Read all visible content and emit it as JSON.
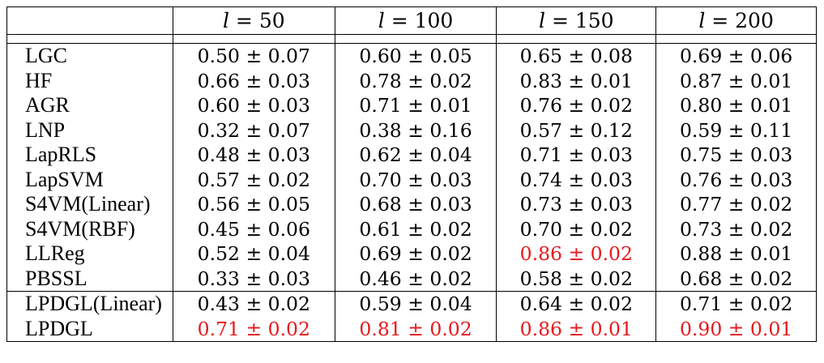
{
  "colors": {
    "highlight": "#e8191c",
    "text": "#000000"
  },
  "header": {
    "corner": "",
    "columns": [
      "l = 50",
      "l = 100",
      "l = 150",
      "l = 200"
    ]
  },
  "rows": [
    {
      "method": "LGC",
      "values": [
        "0.50 ± 0.07",
        "0.60 ± 0.05",
        "0.65 ± 0.08",
        "0.69 ± 0.06"
      ],
      "highlight": [
        false,
        false,
        false,
        false
      ]
    },
    {
      "method": "HF",
      "values": [
        "0.66 ± 0.03",
        "0.78 ± 0.02",
        "0.83 ± 0.01",
        "0.87 ± 0.01"
      ],
      "highlight": [
        false,
        false,
        false,
        false
      ]
    },
    {
      "method": "AGR",
      "values": [
        "0.60 ± 0.03",
        "0.71 ± 0.01",
        "0.76 ± 0.02",
        "0.80 ± 0.01"
      ],
      "highlight": [
        false,
        false,
        false,
        false
      ]
    },
    {
      "method": "LNP",
      "values": [
        "0.32 ± 0.07",
        "0.38 ± 0.16",
        "0.57 ± 0.12",
        "0.59 ± 0.11"
      ],
      "highlight": [
        false,
        false,
        false,
        false
      ]
    },
    {
      "method": "LapRLS",
      "values": [
        "0.48 ± 0.03",
        "0.62 ± 0.04",
        "0.71 ± 0.03",
        "0.75 ± 0.03"
      ],
      "highlight": [
        false,
        false,
        false,
        false
      ]
    },
    {
      "method": "LapSVM",
      "values": [
        "0.57 ± 0.02",
        "0.70 ± 0.03",
        "0.74 ± 0.03",
        "0.76 ± 0.03"
      ],
      "highlight": [
        false,
        false,
        false,
        false
      ]
    },
    {
      "method": "S4VM(Linear)",
      "values": [
        "0.56 ± 0.05",
        "0.68 ± 0.03",
        "0.73 ± 0.03",
        "0.77 ± 0.02"
      ],
      "highlight": [
        false,
        false,
        false,
        false
      ]
    },
    {
      "method": "S4VM(RBF)",
      "values": [
        "0.45 ± 0.06",
        "0.61 ± 0.02",
        "0.70 ± 0.02",
        "0.73 ± 0.02"
      ],
      "highlight": [
        false,
        false,
        false,
        false
      ]
    },
    {
      "method": "LLReg",
      "values": [
        "0.52 ± 0.04",
        "0.69 ± 0.02",
        "0.86 ± 0.02",
        "0.88 ± 0.01"
      ],
      "highlight": [
        false,
        false,
        true,
        false
      ]
    },
    {
      "method": "PBSSL",
      "values": [
        "0.33 ± 0.03",
        "0.46 ± 0.02",
        "0.58 ± 0.02",
        "0.68 ± 0.02"
      ],
      "highlight": [
        false,
        false,
        false,
        false
      ]
    },
    {
      "method": "LPDGL(Linear)",
      "values": [
        "0.43 ± 0.02",
        "0.59 ± 0.04",
        "0.64 ± 0.02",
        "0.71 ± 0.02"
      ],
      "highlight": [
        false,
        false,
        false,
        false
      ]
    },
    {
      "method": "LPDGL",
      "values": [
        "0.71 ± 0.02",
        "0.81 ± 0.02",
        "0.86 ± 0.01",
        "0.90 ± 0.01"
      ],
      "highlight": [
        true,
        true,
        true,
        true
      ]
    }
  ]
}
